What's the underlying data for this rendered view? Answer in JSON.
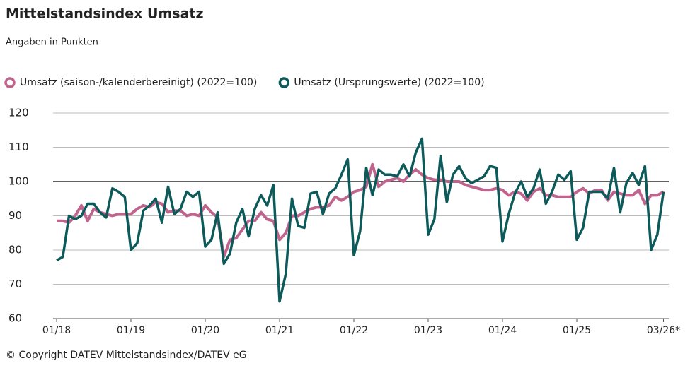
{
  "chart_data": {
    "type": "line",
    "title": "Mittelstandsindex Umsatz",
    "subtitle": "Angaben in Punkten",
    "source": "© Copyright DATEV Mittelstandsindex/DATEV eG",
    "categories": [
      "01/18",
      null,
      null,
      null,
      null,
      null,
      null,
      null,
      null,
      null,
      null,
      null,
      "01/19",
      null,
      null,
      null,
      null,
      null,
      null,
      null,
      null,
      null,
      null,
      null,
      "01/20",
      null,
      null,
      null,
      null,
      null,
      null,
      null,
      null,
      null,
      null,
      null,
      "01/21",
      null,
      null,
      null,
      null,
      null,
      null,
      null,
      null,
      null,
      null,
      null,
      "01/22",
      null,
      null,
      null,
      null,
      null,
      null,
      null,
      null,
      null,
      null,
      null,
      "01/23",
      null,
      null,
      null,
      null,
      null,
      null,
      null,
      null,
      null,
      null,
      null,
      "01/24",
      null,
      null,
      null,
      null,
      null,
      null,
      null,
      null,
      null,
      null,
      null,
      "01/25",
      null,
      null,
      null,
      null,
      null,
      null,
      null,
      null,
      null,
      null,
      null,
      null,
      null,
      "03/26*"
    ],
    "series": [
      {
        "name": "Umsatz (saison-/kalenderbereinigt) (2022=100)",
        "color": "#c0648e",
        "values": [
          88.5,
          88.5,
          88,
          90,
          93,
          88.5,
          92,
          91,
          90.5,
          90,
          90.5,
          90.5,
          90.5,
          92,
          93,
          92.5,
          94,
          93.5,
          91,
          91.5,
          91.5,
          90,
          90.5,
          90,
          93,
          91,
          89.5,
          78,
          83,
          83.5,
          86,
          88.5,
          88.5,
          91,
          89,
          88.5,
          83,
          85,
          90,
          90,
          91,
          92,
          92.5,
          92.5,
          93,
          95.5,
          94.5,
          95.5,
          97,
          97.5,
          98.5,
          105,
          98.5,
          100,
          100.5,
          101,
          100,
          102,
          103.5,
          102,
          101,
          100.5,
          100.5,
          100,
          100,
          100,
          99,
          98.5,
          98,
          97.5,
          97.5,
          98,
          97.5,
          96,
          97,
          96.5,
          94.5,
          97,
          98,
          96,
          96,
          95.5,
          95.5,
          95.5,
          97,
          98,
          96.5,
          97.5,
          97.5,
          94.5,
          97,
          96.5,
          96,
          96,
          97.5,
          93.5,
          96,
          96,
          97
        ]
      },
      {
        "name": "Umsatz (Ursprungswerte) (2022=100)",
        "color": "#0d5a5a",
        "values": [
          77,
          78,
          90,
          89,
          90,
          93.5,
          93.5,
          91,
          89.5,
          98,
          97,
          95.5,
          80,
          82,
          91.5,
          93,
          95,
          88,
          98.5,
          90.5,
          92,
          97,
          95.5,
          97,
          81,
          83,
          91,
          76,
          79,
          88,
          92,
          84,
          92,
          96,
          93,
          99,
          65,
          73,
          95,
          87,
          86.5,
          96.5,
          97,
          90.5,
          96.5,
          98,
          102,
          106.5,
          78.5,
          85.5,
          104,
          96,
          103.5,
          102,
          102,
          101.5,
          105,
          101.5,
          108.5,
          112.5,
          84.5,
          89,
          107.5,
          94,
          102,
          104.5,
          101,
          99.5,
          100.5,
          101.5,
          104.5,
          104,
          82.5,
          90.5,
          96.5,
          100,
          95.5,
          98,
          103.5,
          93.5,
          97,
          102,
          100.5,
          103,
          83,
          86.5,
          97,
          97,
          97,
          95,
          104,
          91,
          99.5,
          102.5,
          99,
          104.5,
          80,
          84.5,
          97
        ]
      }
    ],
    "ylim": [
      60,
      120
    ],
    "yticks": [
      60,
      70,
      80,
      90,
      100,
      110,
      120
    ],
    "grid": true,
    "reference_line": 100
  }
}
